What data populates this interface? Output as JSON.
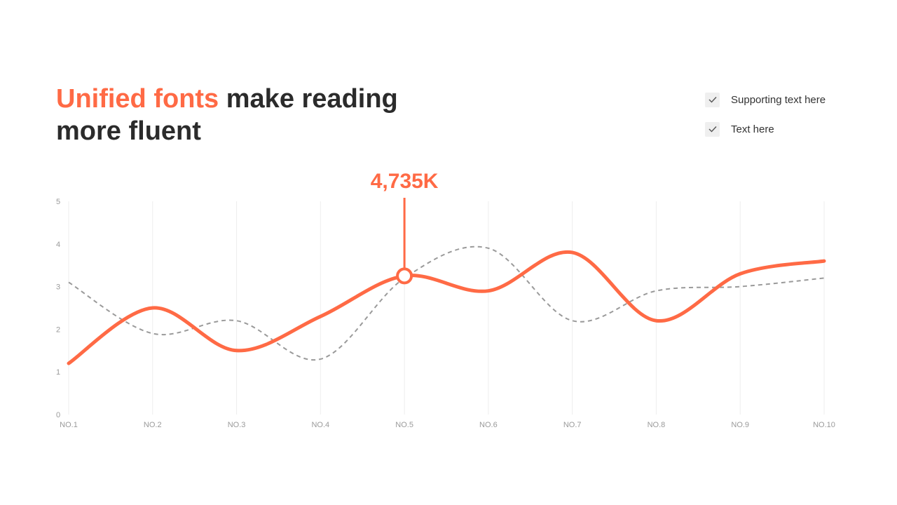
{
  "headline": {
    "accent": "Unified fonts",
    "rest": " make reading more fluent"
  },
  "checklist": [
    {
      "label": "Supporting text here",
      "checked": true,
      "icon": "check-icon"
    },
    {
      "label": "Text here",
      "checked": true,
      "icon": "check-icon"
    }
  ],
  "colors": {
    "accent": "#ff6a45",
    "secondary": "#9a9a9a",
    "grid": "#eeeeee",
    "text": "#2b2b2b"
  },
  "chart_data": {
    "type": "line",
    "categories": [
      "NO.1",
      "NO.2",
      "NO.3",
      "NO.4",
      "NO.5",
      "NO.6",
      "NO.7",
      "NO.8",
      "NO.9",
      "NO.10"
    ],
    "series": [
      {
        "values": [
          1.2,
          2.5,
          1.5,
          2.3,
          3.25,
          2.9,
          3.8,
          2.2,
          3.3,
          3.6
        ],
        "style": "solid",
        "color": "#ff6a45"
      },
      {
        "values": [
          3.1,
          1.9,
          2.2,
          1.3,
          3.2,
          3.9,
          2.2,
          2.9,
          3.0,
          3.2
        ],
        "style": "dashed",
        "color": "#9a9a9a"
      }
    ],
    "y_ticks": [
      "0",
      "1",
      "2",
      "3",
      "4",
      "5"
    ],
    "ylim": [
      0,
      5
    ],
    "smooth": true,
    "grid": "vertical",
    "highlight": {
      "category": "NO.5",
      "label": "4,735K"
    }
  }
}
